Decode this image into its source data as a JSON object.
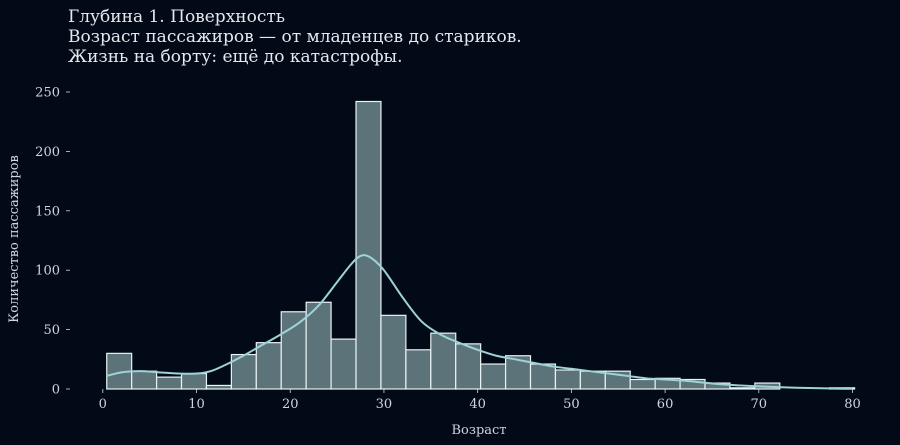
{
  "title_lines": [
    "Глубина 1. Поверхность",
    "Возраст пассажиров — от младенцев до стариков.",
    "Жизнь на борту: ещё до катастрофы."
  ],
  "colors": {
    "background": "#020a18",
    "bar_fill": "#5c7479",
    "bar_stroke": "#e9f2f4",
    "kde_line": "#9ed3d7",
    "text": "#cfd5de"
  },
  "chart_data": {
    "type": "bar",
    "subtype": "histogram with kde",
    "xlabel": "Возраст",
    "ylabel": "Количество пассажиров",
    "xlim": [
      -3.5,
      84
    ],
    "ylim": [
      0,
      250
    ],
    "xticks": [
      0,
      10,
      20,
      30,
      40,
      50,
      60,
      70,
      80
    ],
    "yticks": [
      0,
      50,
      100,
      150,
      200,
      250
    ],
    "grid": false,
    "bin_width": 2.66,
    "bins": [
      {
        "x0": 0.42,
        "count": 30
      },
      {
        "x0": 3.08,
        "count": 15
      },
      {
        "x0": 5.74,
        "count": 10
      },
      {
        "x0": 8.4,
        "count": 13
      },
      {
        "x0": 11.06,
        "count": 3
      },
      {
        "x0": 13.72,
        "count": 29
      },
      {
        "x0": 16.38,
        "count": 39
      },
      {
        "x0": 19.04,
        "count": 65
      },
      {
        "x0": 21.7,
        "count": 73
      },
      {
        "x0": 24.36,
        "count": 42
      },
      {
        "x0": 27.02,
        "count": 242
      },
      {
        "x0": 29.68,
        "count": 62
      },
      {
        "x0": 32.34,
        "count": 33
      },
      {
        "x0": 35.0,
        "count": 47
      },
      {
        "x0": 37.66,
        "count": 38
      },
      {
        "x0": 40.32,
        "count": 21
      },
      {
        "x0": 42.98,
        "count": 28
      },
      {
        "x0": 45.64,
        "count": 21
      },
      {
        "x0": 48.3,
        "count": 16
      },
      {
        "x0": 50.96,
        "count": 15
      },
      {
        "x0": 53.62,
        "count": 15
      },
      {
        "x0": 56.28,
        "count": 8
      },
      {
        "x0": 58.94,
        "count": 9
      },
      {
        "x0": 61.6,
        "count": 8
      },
      {
        "x0": 64.26,
        "count": 5
      },
      {
        "x0": 66.92,
        "count": 1
      },
      {
        "x0": 69.58,
        "count": 5
      },
      {
        "x0": 72.24,
        "count": 0
      },
      {
        "x0": 74.9,
        "count": 0
      },
      {
        "x0": 77.56,
        "count": 1
      }
    ],
    "kde": [
      [
        0.4,
        11
      ],
      [
        2,
        14
      ],
      [
        4,
        15
      ],
      [
        6,
        14
      ],
      [
        8,
        13
      ],
      [
        10,
        13
      ],
      [
        11.5,
        15
      ],
      [
        13,
        20
      ],
      [
        15,
        28
      ],
      [
        17,
        37
      ],
      [
        19,
        46
      ],
      [
        21,
        56
      ],
      [
        23,
        70
      ],
      [
        25,
        90
      ],
      [
        26.5,
        105
      ],
      [
        27.5,
        112
      ],
      [
        28.5,
        111
      ],
      [
        30,
        100
      ],
      [
        32,
        77
      ],
      [
        34,
        57
      ],
      [
        36,
        46
      ],
      [
        38,
        39
      ],
      [
        40,
        33
      ],
      [
        42,
        28
      ],
      [
        44,
        25
      ],
      [
        46,
        22
      ],
      [
        48,
        19
      ],
      [
        50,
        17
      ],
      [
        52,
        15
      ],
      [
        54,
        13
      ],
      [
        56,
        11
      ],
      [
        58,
        9
      ],
      [
        60,
        8
      ],
      [
        62,
        7
      ],
      [
        64,
        5.5
      ],
      [
        66,
        4
      ],
      [
        68,
        3
      ],
      [
        70,
        2.2
      ],
      [
        72,
        1.6
      ],
      [
        74,
        1.1
      ],
      [
        76,
        0.7
      ],
      [
        78,
        0.4
      ],
      [
        80,
        0.2
      ]
    ]
  }
}
